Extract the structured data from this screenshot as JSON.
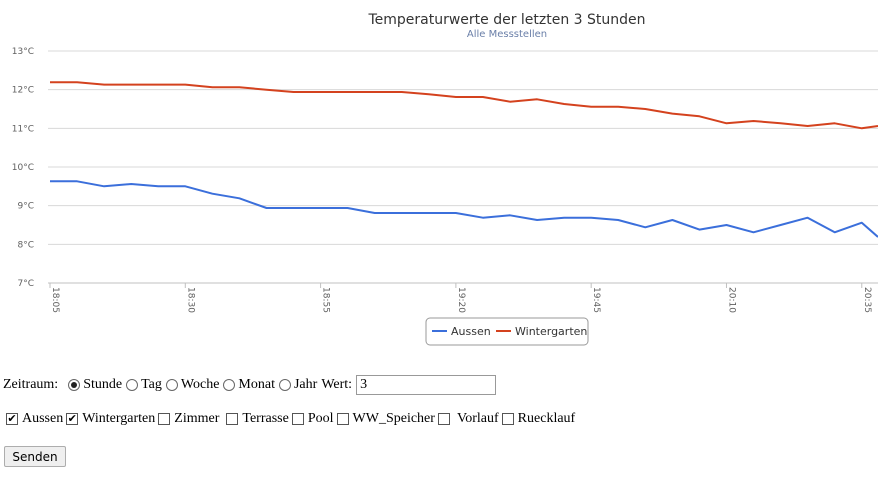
{
  "chart_data": {
    "type": "line",
    "title": "Temperaturwerte der letzten 3 Stunden",
    "subtitle": "Alle Messstellen",
    "ylim": [
      7,
      13
    ],
    "yticks": [
      "7°C",
      "8°C",
      "9°C",
      "10°C",
      "11°C",
      "12°C",
      "13°C"
    ],
    "xticks": [
      "18:05",
      "18:30",
      "18:55",
      "19:20",
      "19:45",
      "20:10",
      "20:35"
    ],
    "x_minutes_start": 0,
    "x_minutes_end": 153,
    "grid": true,
    "legend_position": "bottom-center",
    "series": [
      {
        "name": "Aussen",
        "color": "#3b6fdb",
        "x": [
          0,
          5,
          10,
          15,
          20,
          25,
          30,
          35,
          40,
          45,
          50,
          55,
          60,
          65,
          70,
          75,
          80,
          85,
          90,
          95,
          100,
          105,
          110,
          115,
          120,
          125,
          130,
          135,
          140,
          145,
          150,
          153
        ],
        "values": [
          9.63,
          9.63,
          9.5,
          9.56,
          9.5,
          9.5,
          9.31,
          9.19,
          8.94,
          8.94,
          8.94,
          8.94,
          8.81,
          8.81,
          8.81,
          8.81,
          8.69,
          8.75,
          8.63,
          8.69,
          8.69,
          8.63,
          8.44,
          8.63,
          8.38,
          8.5,
          8.31,
          8.5,
          8.69,
          8.31,
          8.56,
          8.19
        ]
      },
      {
        "name": "Wintergarten",
        "color": "#d4421e",
        "x": [
          0,
          5,
          10,
          15,
          20,
          25,
          30,
          35,
          40,
          45,
          50,
          55,
          60,
          65,
          70,
          75,
          80,
          85,
          90,
          95,
          100,
          105,
          110,
          115,
          120,
          125,
          130,
          135,
          140,
          145,
          150,
          153
        ],
        "values": [
          12.19,
          12.19,
          12.13,
          12.13,
          12.13,
          12.13,
          12.06,
          12.06,
          12.0,
          11.94,
          11.94,
          11.94,
          11.94,
          11.94,
          11.88,
          11.81,
          11.81,
          11.69,
          11.75,
          11.63,
          11.56,
          11.56,
          11.5,
          11.38,
          11.31,
          11.13,
          11.19,
          11.13,
          11.06,
          11.13,
          11.0,
          11.06
        ]
      }
    ]
  },
  "form": {
    "zeitraum_label": "Zeitraum:",
    "radios": [
      {
        "label": "Stunde",
        "checked": true
      },
      {
        "label": "Tag",
        "checked": false
      },
      {
        "label": "Woche",
        "checked": false
      },
      {
        "label": "Monat",
        "checked": false
      },
      {
        "label": "Jahr",
        "checked": false
      }
    ],
    "wert_label": "Wert:",
    "wert_value": "3",
    "checkboxes": [
      {
        "label": "Aussen",
        "checked": true
      },
      {
        "label": "Wintergarten",
        "checked": true
      },
      {
        "label": "Zimmer",
        "checked": false
      },
      {
        "label": "Terrasse",
        "checked": false
      },
      {
        "label": "Pool",
        "checked": false
      },
      {
        "label": "WW_Speicher",
        "checked": false
      },
      {
        "label": "Vorlauf",
        "checked": false
      },
      {
        "label": "Ruecklauf",
        "checked": false
      }
    ],
    "submit_label": "Senden"
  }
}
